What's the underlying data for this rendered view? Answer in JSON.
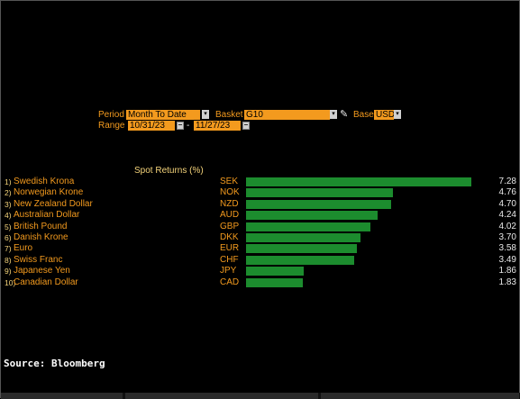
{
  "controls": {
    "period_label": "Period",
    "period_value": "Month To Date",
    "basket_label": "Basket",
    "basket_value": "G10",
    "base_label": "Base",
    "base_value": "USD",
    "range_label": "Range",
    "range_start": "10/31/23",
    "range_sep": "-",
    "range_end": "11/27/23",
    "dropdown_glyph": "▾"
  },
  "heading": "Spot Returns (%)",
  "colors": {
    "orange": "#f39a1e",
    "bar_green": "#1c8c2e",
    "background": "#000000"
  },
  "rows": [
    {
      "rank": "1)",
      "name": "Swedish Krona",
      "code": "SEK",
      "value": "7.28",
      "num": 7.28
    },
    {
      "rank": "2)",
      "name": "Norwegian Krone",
      "code": "NOK",
      "value": "4.76",
      "num": 4.76
    },
    {
      "rank": "3)",
      "name": "New Zealand Dollar",
      "code": "NZD",
      "value": "4.70",
      "num": 4.7
    },
    {
      "rank": "4)",
      "name": "Australian Dollar",
      "code": "AUD",
      "value": "4.24",
      "num": 4.24
    },
    {
      "rank": "5)",
      "name": "British Pound",
      "code": "GBP",
      "value": "4.02",
      "num": 4.02
    },
    {
      "rank": "6)",
      "name": "Danish Krone",
      "code": "DKK",
      "value": "3.70",
      "num": 3.7
    },
    {
      "rank": "7)",
      "name": "Euro",
      "code": "EUR",
      "value": "3.58",
      "num": 3.58
    },
    {
      "rank": "8)",
      "name": "Swiss Franc",
      "code": "CHF",
      "value": "3.49",
      "num": 3.49
    },
    {
      "rank": "9)",
      "name": "Japanese Yen",
      "code": "JPY",
      "value": "1.86",
      "num": 1.86
    },
    {
      "rank": "10)",
      "name": "Canadian Dollar",
      "code": "CAD",
      "value": "1.83",
      "num": 1.83
    }
  ],
  "source": "Source: Bloomberg"
}
